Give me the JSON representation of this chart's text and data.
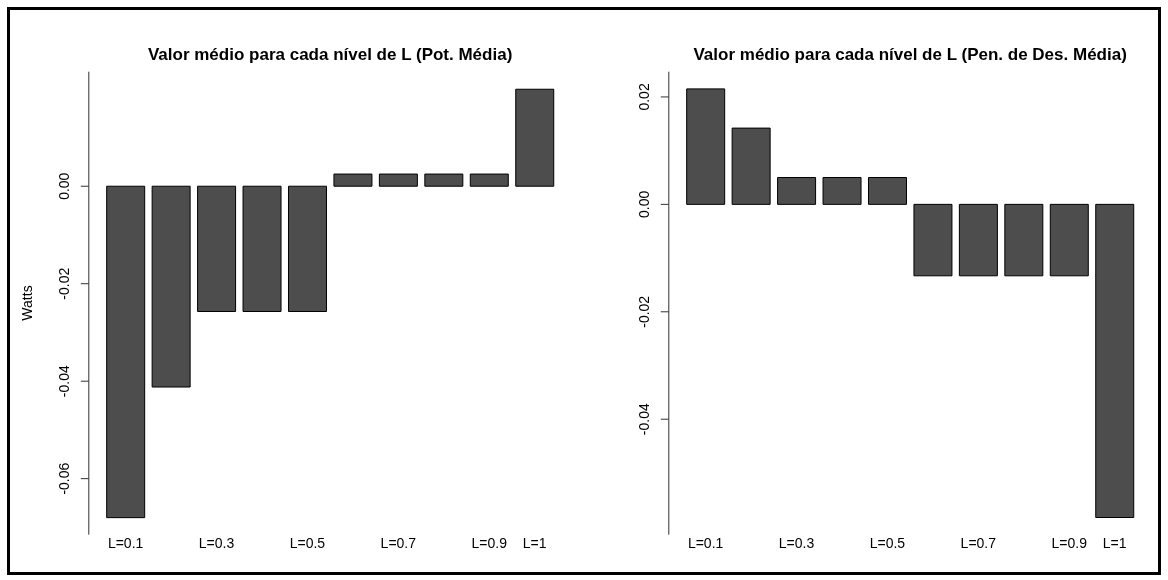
{
  "chart_data": [
    {
      "type": "bar",
      "title": "Valor médio para cada nível de L (Pot. Média)",
      "ylabel": "Watts",
      "categories": [
        "L=0.1",
        null,
        "L=0.3",
        null,
        "L=0.5",
        null,
        "L=0.7",
        null,
        "L=0.9",
        "L=1"
      ],
      "values": [
        -0.068,
        -0.0412,
        -0.0257,
        -0.0257,
        -0.0257,
        0.0025,
        0.0025,
        0.0025,
        0.0025,
        0.0199
      ],
      "color": "#4d4d4d",
      "ylim": [
        -0.0715,
        0.0235
      ],
      "yticks": [
        -0.06,
        -0.04,
        -0.02,
        {
          "value": 0,
          "label": "0.00"
        }
      ]
    },
    {
      "type": "bar",
      "title": "Valor médio para cada nível de L (Pen. de Des. Média)",
      "categories": [
        "L=0.1",
        null,
        "L=0.3",
        null,
        "L=0.5",
        null,
        "L=0.7",
        null,
        "L=0.9",
        "L=1"
      ],
      "values": [
        0.0215,
        0.0142,
        0.005,
        0.005,
        0.005,
        -0.0133,
        -0.0133,
        -0.0133,
        -0.0133,
        -0.0583
      ],
      "color": "#4d4d4d",
      "ylim": [
        -0.0615,
        0.0247
      ],
      "yticks": [
        -0.04,
        -0.02,
        {
          "value": 0,
          "label": "0.00"
        },
        0.02
      ]
    }
  ]
}
